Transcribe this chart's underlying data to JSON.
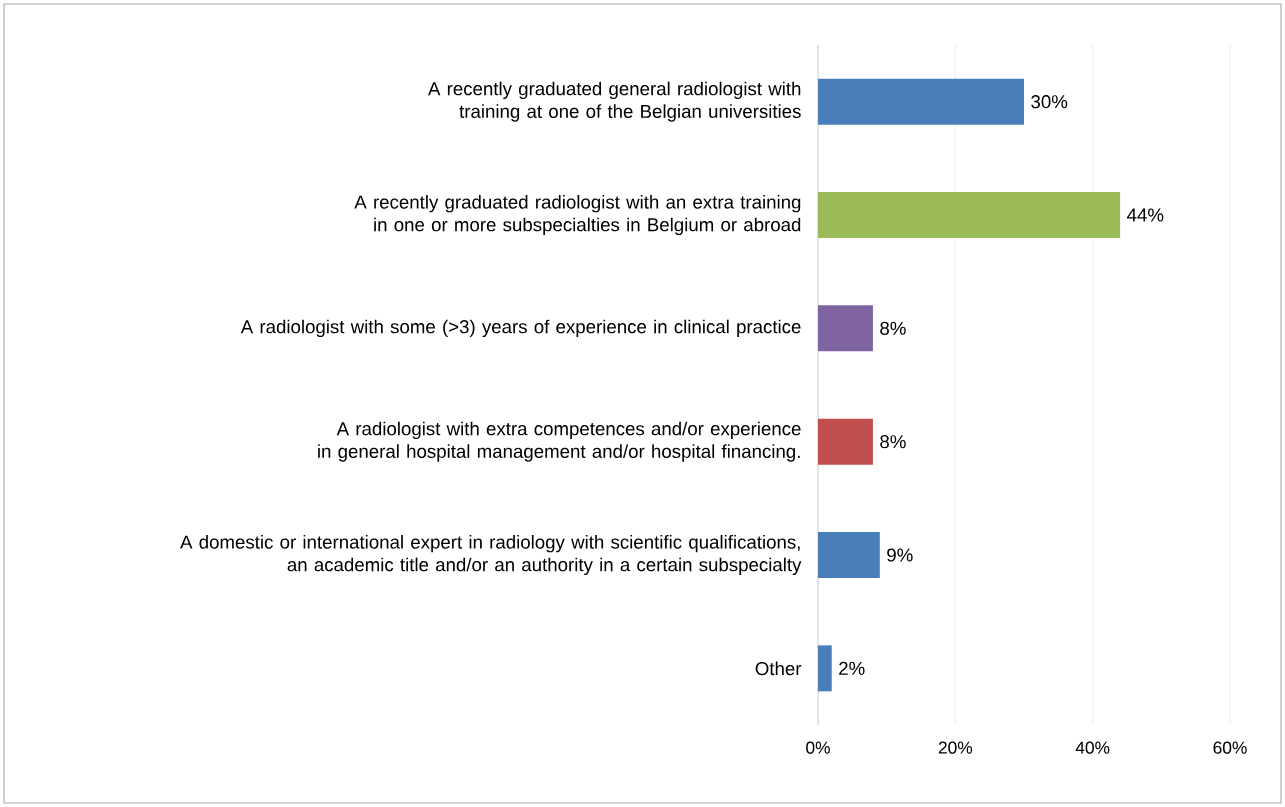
{
  "chart_data": {
    "type": "bar",
    "orientation": "horizontal",
    "categories": [
      "A recently graduated general radiologist with training at one of the Belgian universities",
      "A recently graduated radiologist with an extra training in one or more subspecialties in Belgium or abroad",
      "A radiologist with some (>3) years of experience in clinical practice",
      "A radiologist with extra competences and/or experience in general hospital management and/or hospital financing.",
      "A domestic or international expert in radiology with scientific qualifications, an academic title and/or an authority in a certain subspecialty",
      "Other"
    ],
    "values": [
      30,
      44,
      8,
      8,
      9,
      2
    ],
    "value_labels": [
      "30%",
      "44%",
      "8%",
      "8%",
      "9%",
      "2%"
    ],
    "colors": [
      "#4a7ebb",
      "#9bbb59",
      "#8064a2",
      "#c0504d",
      "#4a7ebb",
      "#4a7ebb"
    ],
    "xlim": [
      0,
      60
    ],
    "xticks": [
      {
        "value": 0,
        "label": "0%"
      },
      {
        "value": 20,
        "label": "20%"
      },
      {
        "value": 40,
        "label": "40%"
      },
      {
        "value": 60,
        "label": "60%"
      }
    ],
    "grid": "x"
  }
}
